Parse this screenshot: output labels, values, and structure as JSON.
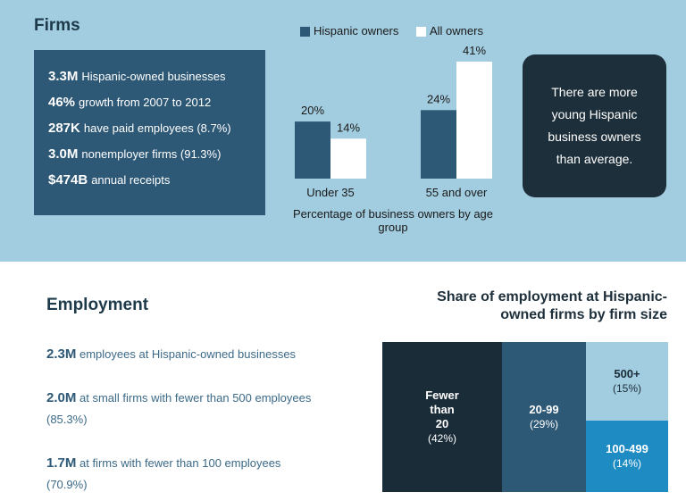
{
  "firms": {
    "title": "Firms",
    "facts": [
      {
        "value": "3.3M",
        "text": "Hispanic-owned businesses"
      },
      {
        "value": "46%",
        "text": "growth from 2007 to 2012"
      },
      {
        "value": "287K",
        "text": "have paid employees (8.7%)"
      },
      {
        "value": "3.0M",
        "text": "nonemployer firms (91.3%)"
      },
      {
        "value": "$474B",
        "text": "annual receipts"
      }
    ]
  },
  "chart_data": [
    {
      "type": "bar",
      "categories": [
        "Under 35",
        "55 and over"
      ],
      "series": [
        {
          "name": "Hispanic owners",
          "values": [
            20,
            24
          ],
          "color": "#2d5876"
        },
        {
          "name": "All owners",
          "values": [
            14,
            41
          ],
          "color": "#ffffff"
        }
      ],
      "data_labels": [
        [
          "20%",
          "24%"
        ],
        [
          "14%",
          "41%"
        ]
      ],
      "caption": "Percentage of business owners by age group",
      "legend": "top",
      "ylim": [
        0,
        41
      ],
      "grid": false
    },
    {
      "type": "treemap",
      "title": "Share of employment at Hispanic-owned firms by firm size",
      "cells": [
        {
          "label": "Fewer\nthan\n20",
          "pct": "(42%)",
          "value": 42,
          "color": "#1a2c38"
        },
        {
          "label": "20-99",
          "pct": "(29%)",
          "value": 29,
          "color": "#2d5876"
        },
        {
          "label": "500+",
          "pct": "(15%)",
          "value": 15,
          "color": "#a2ccdf"
        },
        {
          "label": "100-499",
          "pct": "(14%)",
          "value": 14,
          "color": "#1e8bc3"
        }
      ]
    }
  ],
  "callout": "There are more young Hispanic business owners than average.",
  "employment": {
    "title": "Employment",
    "facts": [
      {
        "value": "2.3M",
        "text": "employees at Hispanic-owned businesses"
      },
      {
        "value": "2.0M",
        "text": "at small firms with fewer than 500 employees (85.3%)"
      },
      {
        "value": "1.7M",
        "text": "at firms with fewer than 100 employees (70.9%)"
      }
    ]
  }
}
